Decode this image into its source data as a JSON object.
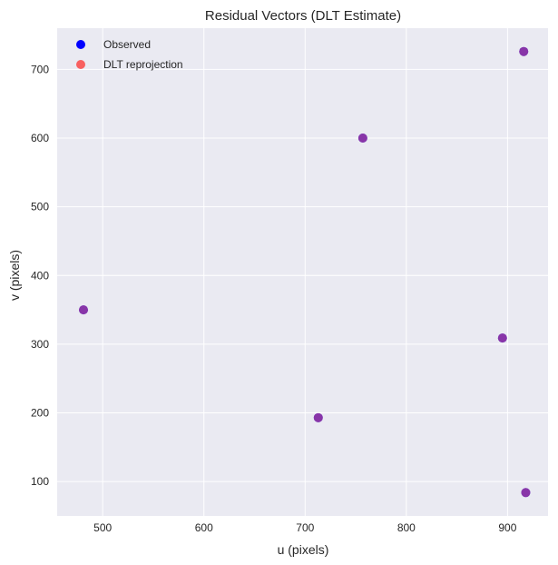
{
  "chart_data": {
    "type": "scatter",
    "title": "Residual Vectors (DLT Estimate)",
    "xlabel": "u (pixels)",
    "ylabel": "v (pixels)",
    "xlim": [
      455,
      940
    ],
    "ylim": [
      50,
      760
    ],
    "xticks": [
      500,
      600,
      700,
      800,
      900
    ],
    "yticks": [
      100,
      200,
      300,
      400,
      500,
      600,
      700
    ],
    "grid": true,
    "legend_position": "top-left",
    "colors": {
      "plot_background": "#eaeaf2",
      "grid": "#ffffff",
      "observed": "#0000ff",
      "reprojection": "#f86060",
      "overlap": "#8b0a5a"
    },
    "series": [
      {
        "name": "Observed",
        "points": [
          {
            "x": 481,
            "y": 350
          },
          {
            "x": 713,
            "y": 193
          },
          {
            "x": 757,
            "y": 600
          },
          {
            "x": 895,
            "y": 309
          },
          {
            "x": 916,
            "y": 726
          },
          {
            "x": 918,
            "y": 84
          }
        ]
      },
      {
        "name": "DLT reprojection",
        "points": [
          {
            "x": 481,
            "y": 350
          },
          {
            "x": 713,
            "y": 193
          },
          {
            "x": 757,
            "y": 600
          },
          {
            "x": 895,
            "y": 309
          },
          {
            "x": 916,
            "y": 726
          },
          {
            "x": 918,
            "y": 84
          }
        ]
      }
    ]
  }
}
